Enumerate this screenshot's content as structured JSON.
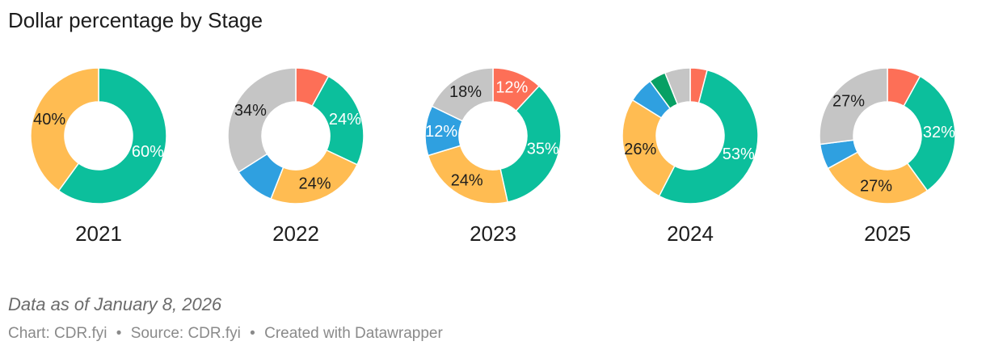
{
  "title": "Dollar percentage by Stage",
  "note": "Data as of January 8, 2026",
  "footer": {
    "chart_label": "Chart: CDR.fyi",
    "source_label": "Source: CDR.fyi",
    "credit": "Created with Datawrapper",
    "separator": "•"
  },
  "colors": {
    "red": "#fd6f57",
    "teal": "#0cbf9c",
    "orange": "#ffbc52",
    "blue": "#2fa0e0",
    "green": "#07a064",
    "gray": "#c5c5c5"
  },
  "chart_data": [
    {
      "type": "pie",
      "label": "2021",
      "slices": [
        {
          "value": 60,
          "color": "#0cbf9c",
          "label": "60%",
          "label_color": "#ffffff"
        },
        {
          "value": 40,
          "color": "#ffbc52",
          "label": "40%",
          "label_color": "#1d1d1d"
        }
      ]
    },
    {
      "type": "pie",
      "label": "2022",
      "slices": [
        {
          "value": 8,
          "color": "#fd6f57",
          "label": ""
        },
        {
          "value": 24,
          "color": "#0cbf9c",
          "label": "24%",
          "label_color": "#ffffff"
        },
        {
          "value": 24,
          "color": "#ffbc52",
          "label": "24%",
          "label_color": "#1d1d1d"
        },
        {
          "value": 10,
          "color": "#2fa0e0",
          "label": ""
        },
        {
          "value": 34,
          "color": "#c5c5c5",
          "label": "34%",
          "label_color": "#1d1d1d"
        }
      ]
    },
    {
      "type": "pie",
      "label": "2023",
      "slices": [
        {
          "value": 12,
          "color": "#fd6f57",
          "label": "12%",
          "label_color": "#ffffff"
        },
        {
          "value": 35,
          "color": "#0cbf9c",
          "label": "35%",
          "label_color": "#ffffff"
        },
        {
          "value": 24,
          "color": "#ffbc52",
          "label": "24%",
          "label_color": "#1d1d1d"
        },
        {
          "value": 12,
          "color": "#2fa0e0",
          "label": "12%",
          "label_color": "#ffffff"
        },
        {
          "value": 18,
          "color": "#c5c5c5",
          "label": "18%",
          "label_color": "#1d1d1d"
        }
      ]
    },
    {
      "type": "pie",
      "label": "2024",
      "slices": [
        {
          "value": 4,
          "color": "#fd6f57",
          "label": ""
        },
        {
          "value": 53,
          "color": "#0cbf9c",
          "label": "53%",
          "label_color": "#ffffff"
        },
        {
          "value": 26,
          "color": "#ffbc52",
          "label": "26%",
          "label_color": "#1d1d1d"
        },
        {
          "value": 6,
          "color": "#2fa0e0",
          "label": ""
        },
        {
          "value": 4,
          "color": "#07a064",
          "label": ""
        },
        {
          "value": 6,
          "color": "#c5c5c5",
          "label": ""
        }
      ]
    },
    {
      "type": "pie",
      "label": "2025",
      "slices": [
        {
          "value": 8,
          "color": "#fd6f57",
          "label": ""
        },
        {
          "value": 32,
          "color": "#0cbf9c",
          "label": "32%",
          "label_color": "#ffffff"
        },
        {
          "value": 27,
          "color": "#ffbc52",
          "label": "27%",
          "label_color": "#1d1d1d"
        },
        {
          "value": 6,
          "color": "#2fa0e0",
          "label": ""
        },
        {
          "value": 27,
          "color": "#c5c5c5",
          "label": "27%",
          "label_color": "#1d1d1d"
        }
      ]
    }
  ]
}
